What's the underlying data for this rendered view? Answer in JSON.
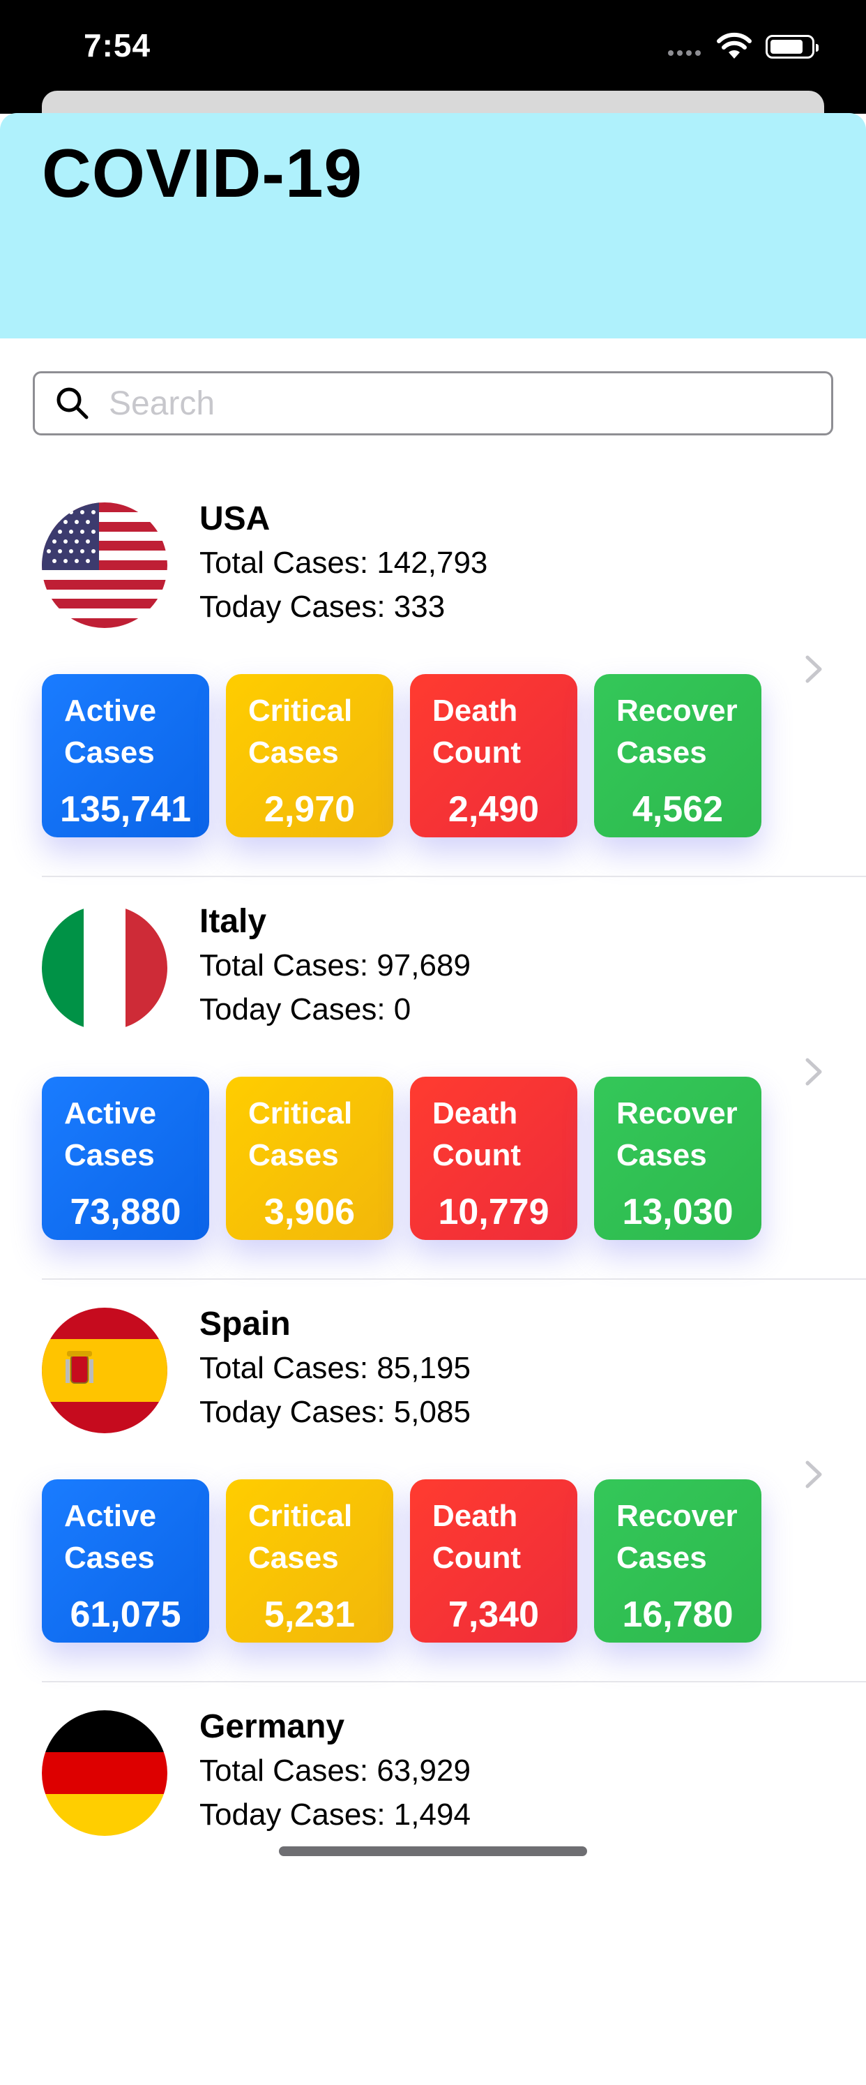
{
  "status_bar": {
    "time": "7:54"
  },
  "header": {
    "title": "COVID-19",
    "background": "#aff1fc"
  },
  "search": {
    "placeholder": "Search",
    "value": ""
  },
  "colors": {
    "active": "#1a7cff",
    "critical": "#ffcd00",
    "death": "#ff3b30",
    "recover": "#34c759"
  },
  "countries": [
    {
      "name": "USA",
      "flag": "usa-flag-icon",
      "total_label": "Total Cases: 142,793",
      "today_label": "Today Cases: 333",
      "stats": {
        "active": "135,741",
        "critical": "2,970",
        "death": "2,490",
        "recover": "4,562"
      }
    },
    {
      "name": "Italy",
      "flag": "italy-flag-icon",
      "total_label": "Total Cases: 97,689",
      "today_label": "Today Cases: 0",
      "stats": {
        "active": "73,880",
        "critical": "3,906",
        "death": "10,779",
        "recover": "13,030"
      }
    },
    {
      "name": "Spain",
      "flag": "spain-flag-icon",
      "total_label": "Total Cases: 85,195",
      "today_label": "Today Cases: 5,085",
      "stats": {
        "active": "61,075",
        "critical": "5,231",
        "death": "7,340",
        "recover": "16,780"
      }
    },
    {
      "name": "Germany",
      "flag": "germany-flag-icon",
      "total_label": "Total Cases: 63,929",
      "today_label": "Today Cases: 1,494"
    }
  ],
  "tile_labels": {
    "active": [
      "Active",
      "Cases"
    ],
    "critical": [
      "Critical",
      "Cases"
    ],
    "death": [
      "Death",
      "Count"
    ],
    "recover": [
      "Recover",
      "Cases"
    ]
  }
}
